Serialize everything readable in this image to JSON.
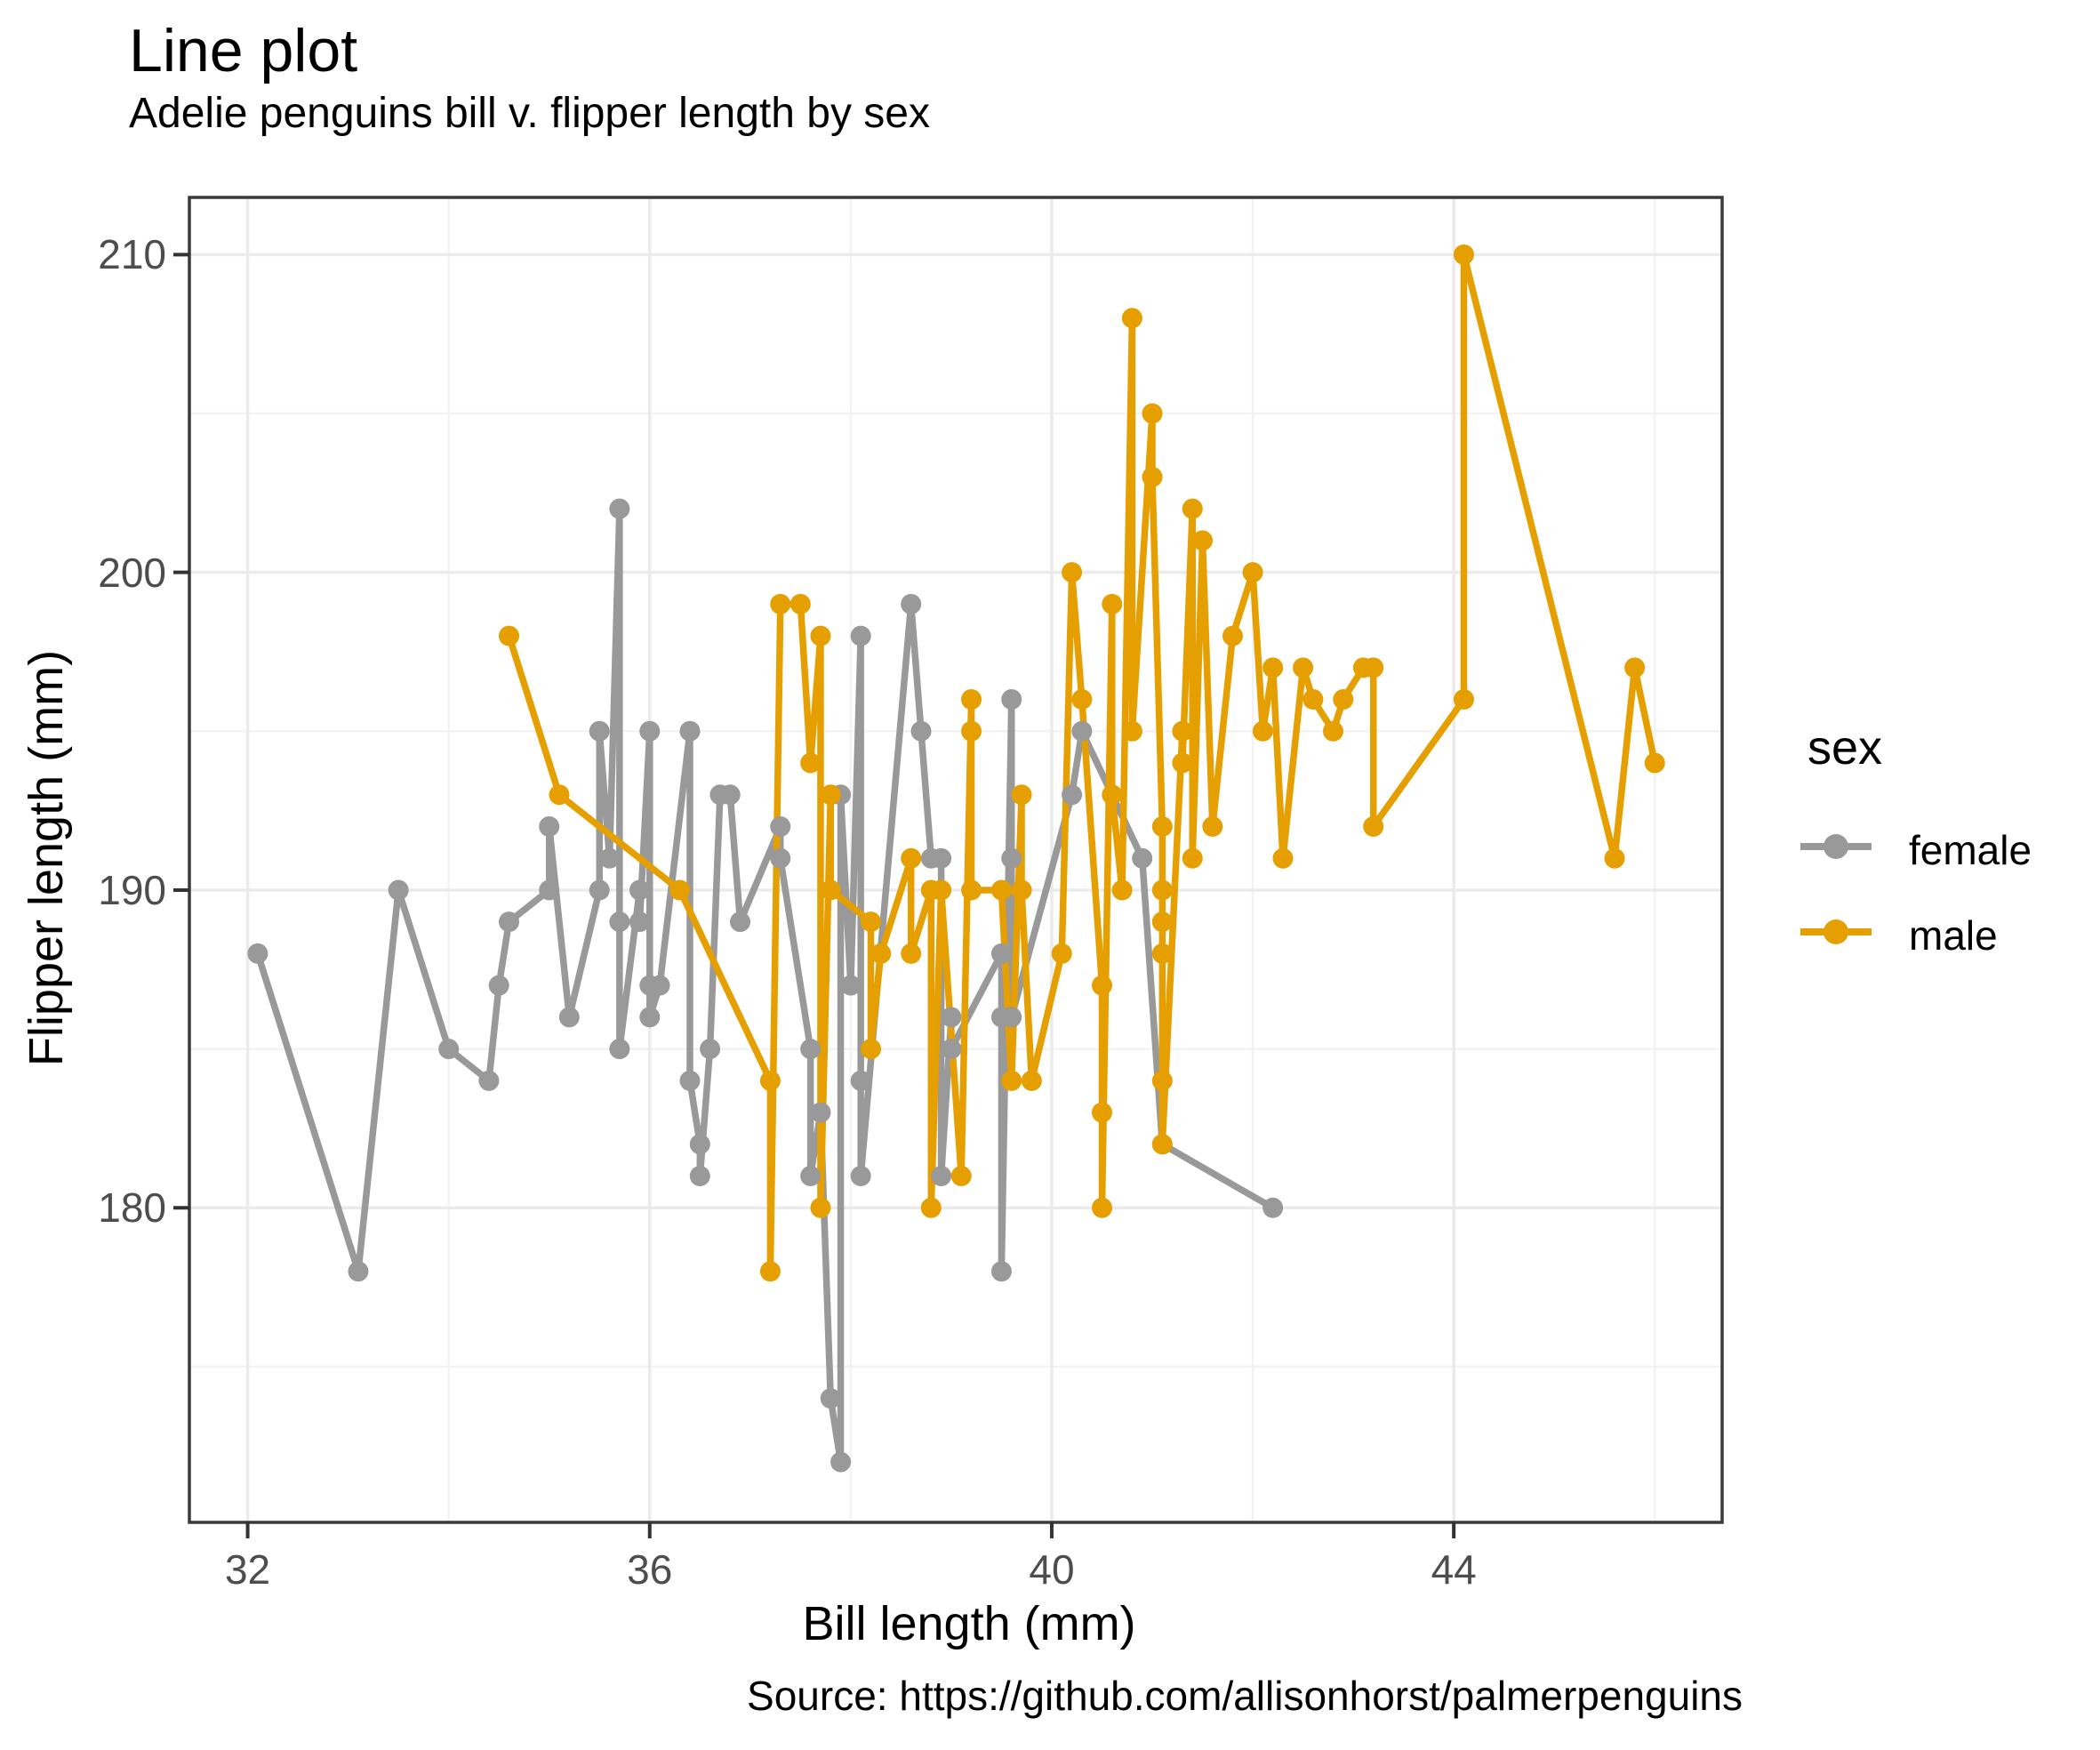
{
  "header": {
    "title": "Line plot",
    "subtitle": "Adelie penguins bill v. flipper length by sex"
  },
  "caption": "Source: https://github.com/allisonhorst/palmerpenguins",
  "axes": {
    "x_label": "Bill length (mm)",
    "y_label": "Flipper length (mm)"
  },
  "legend": {
    "title": "sex",
    "position": "right"
  },
  "colors": {
    "background": "#ffffff",
    "panel_border": "#3a3a3a",
    "grid_major": "#ebebeb",
    "grid_minor": "#f3f3f3",
    "tick_mark": "#333333",
    "tick_text": "#4d4d4d",
    "female": "#999999",
    "male": "#e69f00"
  },
  "chart_data": {
    "type": "line",
    "title": "Line plot",
    "subtitle": "Adelie penguins bill v. flipper length by sex",
    "xlabel": "Bill length (mm)",
    "ylabel": "Flipper length (mm)",
    "caption": "Source: https://github.com/allisonhorst/palmerpenguins",
    "xlim": [
      31.42,
      46.67
    ],
    "ylim": [
      170.1,
      211.8
    ],
    "x_ticks": [
      32,
      36,
      40,
      44
    ],
    "x_minor_ticks": [
      34,
      38,
      42,
      46
    ],
    "y_ticks": [
      180,
      190,
      200,
      210
    ],
    "y_minor_ticks": [
      175,
      185,
      195,
      205
    ],
    "grid": true,
    "legend_position": "right",
    "point_units": "[bill_length_mm, flipper_length_mm]",
    "series": [
      {
        "name": "female",
        "color": "#999999",
        "points": [
          [
            32.1,
            188
          ],
          [
            33.1,
            178
          ],
          [
            33.5,
            190
          ],
          [
            34.0,
            185
          ],
          [
            34.4,
            184
          ],
          [
            34.5,
            187
          ],
          [
            34.6,
            189
          ],
          [
            35.0,
            190
          ],
          [
            35.0,
            192
          ],
          [
            35.2,
            186
          ],
          [
            35.5,
            190
          ],
          [
            35.5,
            195
          ],
          [
            35.6,
            191
          ],
          [
            35.7,
            202
          ],
          [
            35.7,
            189
          ],
          [
            35.7,
            185
          ],
          [
            35.9,
            190
          ],
          [
            35.9,
            189
          ],
          [
            36.0,
            195
          ],
          [
            36.0,
            187
          ],
          [
            36.0,
            186
          ],
          [
            36.1,
            187
          ],
          [
            36.4,
            195
          ],
          [
            36.4,
            184
          ],
          [
            36.5,
            182
          ],
          [
            36.5,
            181
          ],
          [
            36.6,
            185
          ],
          [
            36.7,
            193
          ],
          [
            36.8,
            193
          ],
          [
            36.9,
            189
          ],
          [
            37.3,
            192
          ],
          [
            37.3,
            191
          ],
          [
            37.6,
            185
          ],
          [
            37.6,
            181
          ],
          [
            37.7,
            183
          ],
          [
            37.8,
            174
          ],
          [
            37.9,
            172
          ],
          [
            37.9,
            193
          ],
          [
            38.0,
            187
          ],
          [
            38.1,
            198
          ],
          [
            38.1,
            184
          ],
          [
            38.1,
            181
          ],
          [
            38.6,
            199
          ],
          [
            38.7,
            195
          ],
          [
            38.8,
            191
          ],
          [
            38.9,
            191
          ],
          [
            38.9,
            181
          ],
          [
            39.0,
            186
          ],
          [
            39.0,
            185
          ],
          [
            39.5,
            188
          ],
          [
            39.5,
            186
          ],
          [
            39.5,
            178
          ],
          [
            39.6,
            196
          ],
          [
            39.6,
            191
          ],
          [
            39.6,
            186
          ],
          [
            40.2,
            193
          ],
          [
            40.3,
            195
          ],
          [
            40.9,
            191
          ],
          [
            41.1,
            182
          ],
          [
            42.2,
            180
          ]
        ]
      },
      {
        "name": "male",
        "color": "#e69f00",
        "points": [
          [
            34.6,
            198
          ],
          [
            35.1,
            193
          ],
          [
            36.3,
            190
          ],
          [
            37.2,
            184
          ],
          [
            37.2,
            178
          ],
          [
            37.3,
            199
          ],
          [
            37.5,
            199
          ],
          [
            37.6,
            194
          ],
          [
            37.7,
            198
          ],
          [
            37.7,
            180
          ],
          [
            37.8,
            193
          ],
          [
            37.8,
            190
          ],
          [
            38.2,
            189
          ],
          [
            38.2,
            185
          ],
          [
            38.3,
            188
          ],
          [
            38.6,
            191
          ],
          [
            38.6,
            188
          ],
          [
            38.8,
            190
          ],
          [
            38.8,
            180
          ],
          [
            38.9,
            190
          ],
          [
            39.1,
            181
          ],
          [
            39.2,
            196
          ],
          [
            39.2,
            195
          ],
          [
            39.2,
            190
          ],
          [
            39.5,
            190
          ],
          [
            39.6,
            184
          ],
          [
            39.7,
            193
          ],
          [
            39.7,
            190
          ],
          [
            39.8,
            184
          ],
          [
            40.1,
            188
          ],
          [
            40.2,
            200
          ],
          [
            40.3,
            196
          ],
          [
            40.5,
            187
          ],
          [
            40.5,
            183
          ],
          [
            40.5,
            180
          ],
          [
            40.6,
            199
          ],
          [
            40.6,
            193
          ],
          [
            40.7,
            190
          ],
          [
            40.8,
            208
          ],
          [
            40.8,
            195
          ],
          [
            41.0,
            205
          ],
          [
            41.0,
            203
          ],
          [
            41.1,
            192
          ],
          [
            41.1,
            190
          ],
          [
            41.1,
            189
          ],
          [
            41.1,
            188
          ],
          [
            41.1,
            184
          ],
          [
            41.1,
            182
          ],
          [
            41.3,
            195
          ],
          [
            41.3,
            194
          ],
          [
            41.4,
            202
          ],
          [
            41.4,
            191
          ],
          [
            41.5,
            201
          ],
          [
            41.6,
            192
          ],
          [
            41.8,
            198
          ],
          [
            42.0,
            200
          ],
          [
            42.1,
            195
          ],
          [
            42.2,
            197
          ],
          [
            42.3,
            191
          ],
          [
            42.5,
            197
          ],
          [
            42.6,
            196
          ],
          [
            42.8,
            195
          ],
          [
            42.9,
            196
          ],
          [
            43.1,
            197
          ],
          [
            43.2,
            197
          ],
          [
            43.2,
            192
          ],
          [
            44.1,
            196
          ],
          [
            44.1,
            210
          ],
          [
            45.6,
            191
          ],
          [
            45.8,
            197
          ],
          [
            46.0,
            194
          ]
        ]
      }
    ]
  }
}
